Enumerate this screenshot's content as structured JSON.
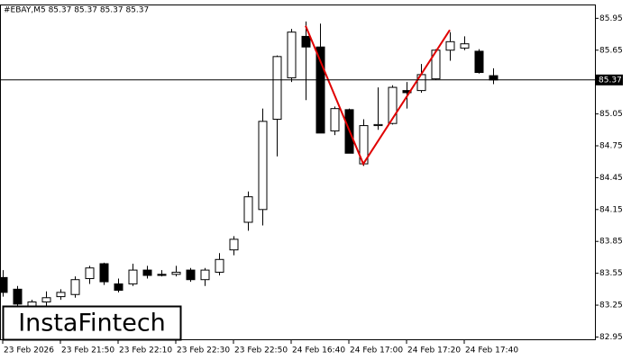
{
  "chart_data": {
    "type": "candlestick",
    "title": "#EBAY,M5  85.37 85.37 85.37 85.37",
    "brand": "InstaFintech",
    "categories": [
      "23 Feb 2026",
      null,
      null,
      null,
      "23 Feb 21:50",
      null,
      null,
      null,
      "23 Feb 22:10",
      null,
      null,
      null,
      "23 Feb 22:30",
      null,
      null,
      null,
      "23 Feb 22:50",
      null,
      null,
      null,
      "24 Feb 16:40",
      null,
      null,
      null,
      "24 Feb 17:00",
      null,
      null,
      null,
      "24 Feb 17:20",
      null,
      null,
      null,
      "24 Feb 17:40",
      null,
      null
    ],
    "open": [
      83.51,
      83.4,
      83.22,
      83.28,
      83.33,
      83.35,
      83.5,
      83.64,
      83.45,
      83.45,
      83.58,
      83.54,
      83.54,
      83.58,
      83.49,
      83.56,
      83.77,
      84.03,
      84.15,
      85.0,
      85.39,
      85.78,
      85.68,
      84.89,
      85.09,
      84.58,
      84.94,
      84.96,
      85.27,
      85.27,
      85.38,
      85.65,
      85.67,
      85.64,
      85.41
    ],
    "high": [
      83.58,
      83.43,
      83.3,
      83.38,
      83.4,
      83.52,
      83.62,
      83.65,
      83.5,
      83.64,
      83.62,
      83.58,
      83.62,
      83.6,
      83.6,
      83.74,
      83.9,
      84.32,
      85.1,
      85.6,
      85.85,
      85.92,
      85.9,
      85.12,
      85.1,
      85.0,
      85.3,
      85.32,
      85.35,
      85.52,
      85.66,
      85.82,
      85.78,
      85.66,
      85.48
    ],
    "low": [
      83.33,
      83.2,
      83.18,
      83.24,
      83.3,
      83.32,
      83.45,
      83.44,
      83.37,
      83.43,
      83.5,
      83.52,
      83.52,
      83.47,
      83.43,
      83.53,
      83.72,
      83.95,
      84.0,
      84.65,
      85.35,
      85.18,
      84.87,
      84.85,
      84.68,
      84.56,
      84.9,
      84.95,
      85.1,
      85.25,
      85.37,
      85.55,
      85.65,
      85.43,
      85.33
    ],
    "close": [
      83.37,
      83.26,
      83.28,
      83.32,
      83.37,
      83.49,
      83.6,
      83.47,
      83.39,
      83.58,
      83.53,
      83.53,
      83.56,
      83.49,
      83.58,
      83.68,
      83.87,
      84.27,
      84.98,
      85.59,
      85.82,
      85.68,
      84.87,
      85.1,
      84.68,
      84.94,
      84.95,
      85.3,
      85.25,
      85.42,
      85.65,
      85.73,
      85.71,
      85.44,
      85.37
    ],
    "up_color": "#ffffff",
    "down_color": "#000000",
    "ylim": [
      82.92,
      86.08
    ],
    "yticks": [
      82.95,
      83.25,
      83.55,
      83.85,
      84.15,
      84.45,
      84.75,
      85.05,
      85.35,
      85.65,
      85.95
    ],
    "current_price": 85.37,
    "pattern": {
      "color": "#e00000",
      "points": [
        {
          "x": 21,
          "y": 85.88
        },
        {
          "x": 25,
          "y": 84.58
        },
        {
          "x": 31,
          "y": 85.84
        }
      ]
    }
  }
}
